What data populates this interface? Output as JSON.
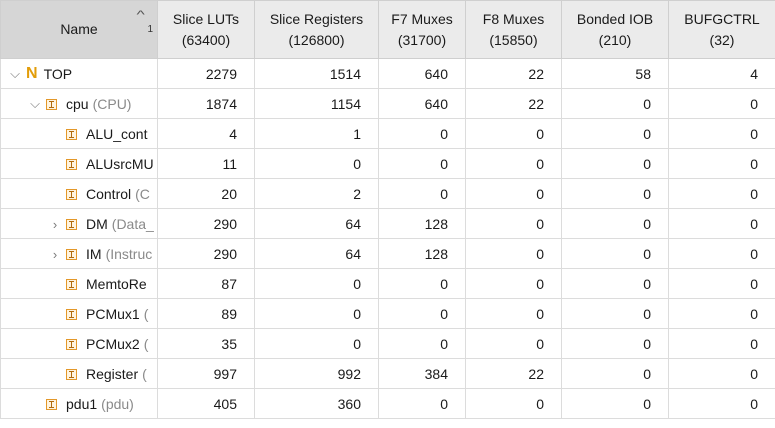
{
  "header": {
    "name_label": "Name",
    "sort_index": "1",
    "columns": [
      {
        "title": "Slice LUTs",
        "sub": "(63400)"
      },
      {
        "title": "Slice Registers",
        "sub": "(126800)"
      },
      {
        "title": "F7 Muxes",
        "sub": "(31700)"
      },
      {
        "title": "F8 Muxes",
        "sub": "(15850)"
      },
      {
        "title": "Bonded IOB",
        "sub": "(210)"
      },
      {
        "title": "BUFGCTRL",
        "sub": "(32)"
      }
    ]
  },
  "rows": [
    {
      "name": "TOP",
      "inst": "",
      "chevron": "expanded",
      "icon": "top",
      "values": [
        "2279",
        "1514",
        "640",
        "22",
        "58",
        "4"
      ]
    },
    {
      "name": "cpu",
      "inst": "(CPU)",
      "chevron": "expanded",
      "icon": "module",
      "values": [
        "1874",
        "1154",
        "640",
        "22",
        "0",
        "0"
      ]
    },
    {
      "name": "ALU_cont",
      "inst": "",
      "chevron": "none",
      "icon": "module",
      "values": [
        "4",
        "1",
        "0",
        "0",
        "0",
        "0"
      ]
    },
    {
      "name": "ALUsrcMU",
      "inst": "",
      "chevron": "none",
      "icon": "module",
      "values": [
        "11",
        "0",
        "0",
        "0",
        "0",
        "0"
      ]
    },
    {
      "name": "Control",
      "inst": "(C",
      "chevron": "none",
      "icon": "module",
      "values": [
        "20",
        "2",
        "0",
        "0",
        "0",
        "0"
      ]
    },
    {
      "name": "DM",
      "inst": "(Data_",
      "chevron": "collapsed",
      "icon": "module",
      "values": [
        "290",
        "64",
        "128",
        "0",
        "0",
        "0"
      ]
    },
    {
      "name": "IM",
      "inst": "(Instruc",
      "chevron": "collapsed",
      "icon": "module",
      "values": [
        "290",
        "64",
        "128",
        "0",
        "0",
        "0"
      ]
    },
    {
      "name": "MemtoRe",
      "inst": "",
      "chevron": "none",
      "icon": "module",
      "values": [
        "87",
        "0",
        "0",
        "0",
        "0",
        "0"
      ]
    },
    {
      "name": "PCMux1",
      "inst": "(",
      "chevron": "none",
      "icon": "module",
      "values": [
        "89",
        "0",
        "0",
        "0",
        "0",
        "0"
      ]
    },
    {
      "name": "PCMux2",
      "inst": "(",
      "chevron": "none",
      "icon": "module",
      "values": [
        "35",
        "0",
        "0",
        "0",
        "0",
        "0"
      ]
    },
    {
      "name": "Register",
      "inst": "(",
      "chevron": "none",
      "icon": "module",
      "values": [
        "997",
        "992",
        "384",
        "22",
        "0",
        "0"
      ]
    },
    {
      "name": "pdu1",
      "inst": "(pdu)",
      "chevron": "none",
      "icon": "module",
      "values": [
        "405",
        "360",
        "0",
        "0",
        "0",
        "0"
      ]
    }
  ]
}
